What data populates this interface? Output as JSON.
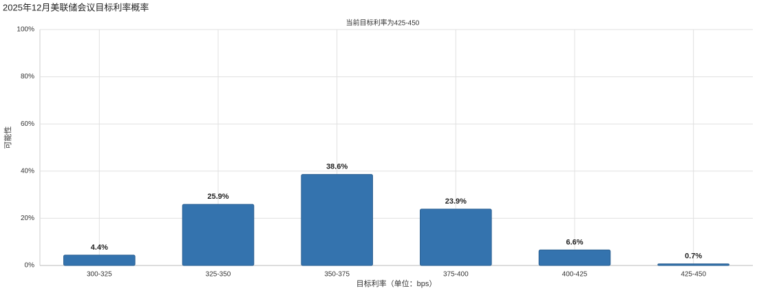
{
  "chart_data": {
    "type": "bar",
    "title": "2025年12月美联储会议目标利率概率",
    "subtitle": "当前目标利率为425-450",
    "y_label": "可能性",
    "x_label": "目标利率（单位：bps）",
    "categories": [
      "300-325",
      "325-350",
      "350-375",
      "375-400",
      "400-425",
      "425-450"
    ],
    "values": [
      4.4,
      25.9,
      38.6,
      23.9,
      6.6,
      0.7
    ],
    "value_labels": [
      "4.4%",
      "25.9%",
      "38.6%",
      "23.9%",
      "6.6%",
      "0.7%"
    ],
    "color": "#3473ae",
    "ylim": [
      0,
      100
    ],
    "yticks": [
      {
        "value": 0,
        "label": "0%"
      },
      {
        "value": 20,
        "label": "20%"
      },
      {
        "value": 40,
        "label": "40%"
      },
      {
        "value": 60,
        "label": "60%"
      },
      {
        "value": 80,
        "label": "80%"
      },
      {
        "value": 100,
        "label": "100%"
      }
    ],
    "grid": true
  }
}
